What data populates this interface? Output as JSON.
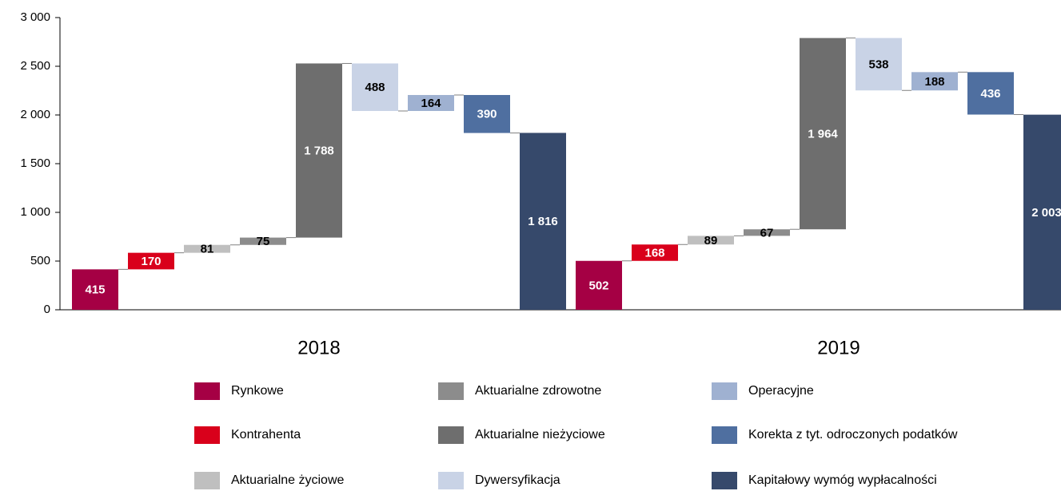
{
  "chart_data": {
    "type": "waterfall",
    "categories": [
      "Rynkowe",
      "Kontrahenta",
      "Aktuarialne życiowe",
      "Aktuarialne zdrowotne",
      "Aktuarialne nieżyciowe",
      "Dywersyfikacja",
      "Operacyjne",
      "Korekta z tyt. odroczonych podatków",
      "Kapitałowy wymóg wypłacalności"
    ],
    "colors": [
      "#a50044",
      "#d9001b",
      "#bfbfbf",
      "#8c8c8c",
      "#6e6e6e",
      "#c9d3e6",
      "#9fb1d1",
      "#4f6fa0",
      "#36496b"
    ],
    "label_colors": [
      "#ffffff",
      "#ffffff",
      "#000000",
      "#000000",
      "#ffffff",
      "#000000",
      "#000000",
      "#ffffff",
      "#ffffff"
    ],
    "measure": [
      "relative",
      "relative",
      "relative",
      "relative",
      "relative",
      "relative",
      "relative",
      "relative",
      "total"
    ],
    "groups": [
      {
        "name": "2018",
        "values": [
          415,
          170,
          81,
          75,
          1788,
          -488,
          164,
          -390,
          1816
        ],
        "value_labels": [
          "415",
          "170",
          "81",
          "75",
          "1 788",
          "488",
          "164",
          "390",
          "1 816"
        ]
      },
      {
        "name": "2019",
        "values": [
          502,
          168,
          89,
          67,
          1964,
          -538,
          188,
          -436,
          2003
        ],
        "value_labels": [
          "502",
          "168",
          "89",
          "67",
          "1 964",
          "538",
          "188",
          "436",
          "2 003"
        ]
      }
    ],
    "ylim": [
      0,
      3000
    ],
    "yticks": [
      0,
      500,
      {
        "value": 1000,
        "label": "1 000"
      },
      {
        "value": 1500,
        "label": "1 500"
      },
      {
        "value": 2000,
        "label": "2 000"
      },
      {
        "value": 2500,
        "label": "2 500"
      },
      {
        "value": 3000,
        "label": "3 000"
      }
    ]
  }
}
